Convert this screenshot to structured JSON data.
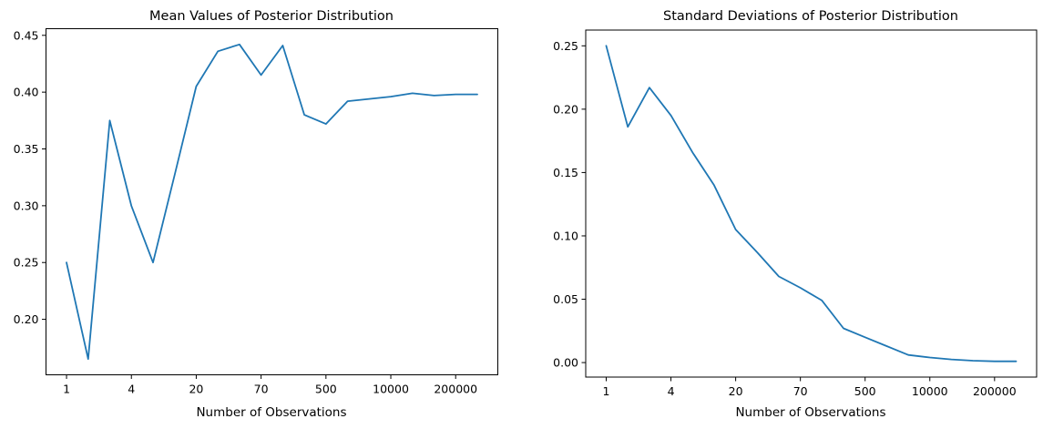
{
  "figure": {
    "background": "#ffffff",
    "line_color": "#1f77b4",
    "spine_color": "#000000"
  },
  "chart_data": [
    {
      "type": "line",
      "title": "Mean Values of Posterior Distribution",
      "xlabel": "Number of Observations",
      "ylabel": "",
      "grid": false,
      "legend": null,
      "x_tick_labels": [
        "1",
        "4",
        "20",
        "70",
        "500",
        "10000",
        "200000"
      ],
      "x_tick_indices": [
        0,
        3,
        6,
        9,
        12,
        15,
        18
      ],
      "y_tick_labels": [
        "0.20",
        "0.25",
        "0.30",
        "0.35",
        "0.40",
        "0.45"
      ],
      "y_ticks": [
        0.2,
        0.25,
        0.3,
        0.35,
        0.4,
        0.45
      ],
      "ylim": [
        0.15115,
        0.45585
      ],
      "xlim_index": [
        -0.95,
        19.95
      ],
      "x_index": [
        0,
        1,
        2,
        3,
        4,
        5,
        6,
        7,
        8,
        9,
        10,
        11,
        12,
        13,
        14,
        15,
        16,
        17,
        18,
        19
      ],
      "values": [
        0.25,
        0.165,
        0.375,
        0.3,
        0.25,
        0.327,
        0.405,
        0.436,
        0.442,
        0.415,
        0.441,
        0.38,
        0.372,
        0.392,
        0.394,
        0.396,
        0.399,
        0.397,
        0.398,
        0.398
      ]
    },
    {
      "type": "line",
      "title": "Standard Deviations of Posterior Distribution",
      "xlabel": "Number of Observations",
      "ylabel": "",
      "grid": false,
      "legend": null,
      "x_tick_labels": [
        "1",
        "4",
        "20",
        "70",
        "500",
        "10000",
        "200000"
      ],
      "x_tick_indices": [
        0,
        3,
        6,
        9,
        12,
        15,
        18
      ],
      "y_tick_labels": [
        "0.00",
        "0.05",
        "0.10",
        "0.15",
        "0.20",
        "0.25"
      ],
      "y_ticks": [
        0.0,
        0.05,
        0.1,
        0.15,
        0.2,
        0.25
      ],
      "ylim": [
        -0.01145,
        0.26245
      ],
      "xlim_index": [
        -0.95,
        19.95
      ],
      "x_index": [
        0,
        1,
        2,
        3,
        4,
        5,
        6,
        7,
        8,
        9,
        10,
        11,
        12,
        13,
        14,
        15,
        16,
        17,
        18,
        19
      ],
      "values": [
        0.25,
        0.186,
        0.217,
        0.195,
        0.166,
        0.14,
        0.105,
        0.087,
        0.068,
        0.059,
        0.049,
        0.027,
        0.02,
        0.013,
        0.006,
        0.004,
        0.0025,
        0.0015,
        0.001,
        0.001
      ]
    }
  ]
}
